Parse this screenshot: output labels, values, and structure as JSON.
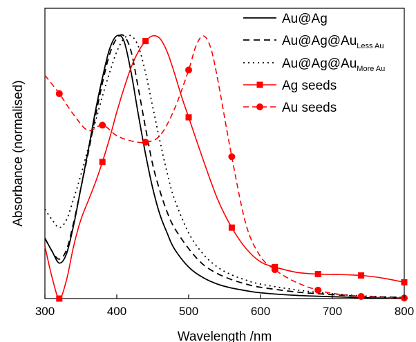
{
  "chart_data": {
    "type": "line",
    "title": "",
    "xlabel": "Wavelength /nm",
    "ylabel": "Absorbance (normalised)",
    "xlim": [
      300,
      800
    ],
    "ylim": [
      0,
      1.0
    ],
    "xticks": [
      300,
      400,
      500,
      600,
      700,
      800
    ],
    "yticks_shown": false,
    "legend_position": "top-right",
    "series": [
      {
        "name": "Au@Ag",
        "color": "#000000",
        "dash": "solid",
        "marker": "none",
        "x": [
          300,
          310,
          320,
          330,
          340,
          350,
          360,
          370,
          380,
          390,
          400,
          410,
          420,
          430,
          440,
          450,
          460,
          470,
          480,
          500,
          520,
          540,
          560,
          580,
          600,
          650,
          700,
          750,
          800
        ],
        "y": [
          0.23,
          0.18,
          0.135,
          0.17,
          0.28,
          0.42,
          0.56,
          0.71,
          0.84,
          0.95,
          1.0,
          0.98,
          0.86,
          0.7,
          0.55,
          0.42,
          0.32,
          0.25,
          0.19,
          0.12,
          0.08,
          0.055,
          0.04,
          0.03,
          0.022,
          0.012,
          0.007,
          0.003,
          0.0
        ]
      },
      {
        "name": "Au@Ag@Au",
        "name_sub": "Less Au",
        "color": "#000000",
        "dash": "long",
        "marker": "none",
        "x": [
          300,
          310,
          320,
          330,
          340,
          350,
          360,
          370,
          380,
          390,
          400,
          410,
          420,
          430,
          440,
          450,
          460,
          470,
          480,
          500,
          520,
          540,
          560,
          580,
          600,
          650,
          700,
          750,
          800
        ],
        "y": [
          0.23,
          0.18,
          0.15,
          0.185,
          0.29,
          0.42,
          0.55,
          0.69,
          0.82,
          0.93,
          0.99,
          1.0,
          0.94,
          0.8,
          0.65,
          0.51,
          0.41,
          0.33,
          0.27,
          0.19,
          0.13,
          0.095,
          0.072,
          0.055,
          0.043,
          0.025,
          0.015,
          0.008,
          0.004
        ]
      },
      {
        "name": "Au@Ag@Au",
        "name_sub": "More Au",
        "color": "#000000",
        "dash": "dotted",
        "marker": "none",
        "x": [
          300,
          310,
          320,
          330,
          340,
          350,
          360,
          370,
          380,
          390,
          400,
          410,
          420,
          430,
          440,
          450,
          460,
          470,
          480,
          500,
          520,
          540,
          560,
          580,
          600,
          650,
          700,
          750,
          800
        ],
        "y": [
          0.34,
          0.3,
          0.27,
          0.3,
          0.38,
          0.47,
          0.57,
          0.67,
          0.77,
          0.86,
          0.94,
          0.99,
          1.0,
          0.96,
          0.86,
          0.73,
          0.6,
          0.48,
          0.38,
          0.25,
          0.17,
          0.12,
          0.09,
          0.07,
          0.055,
          0.033,
          0.018,
          0.009,
          0.004
        ]
      },
      {
        "name": "Ag seeds",
        "color": "#ff0000",
        "dash": "solid",
        "marker": "square",
        "x": [
          300,
          310,
          320,
          330,
          340,
          350,
          360,
          370,
          380,
          390,
          400,
          410,
          420,
          430,
          440,
          450,
          460,
          470,
          480,
          490,
          500,
          520,
          540,
          560,
          580,
          600,
          620,
          650,
          680,
          700,
          740,
          770,
          800
        ],
        "y": [
          0.2,
          0.08,
          0.0,
          0.07,
          0.2,
          0.3,
          0.37,
          0.44,
          0.52,
          0.61,
          0.71,
          0.8,
          0.88,
          0.94,
          0.98,
          1.0,
          0.99,
          0.94,
          0.86,
          0.77,
          0.69,
          0.53,
          0.38,
          0.27,
          0.19,
          0.14,
          0.12,
          0.1,
          0.093,
          0.092,
          0.088,
          0.078,
          0.062
        ]
      },
      {
        "name": "Au seeds",
        "color": "#ff0000",
        "dash": "dashed",
        "marker": "circle",
        "x": [
          300,
          320,
          340,
          360,
          380,
          400,
          420,
          440,
          460,
          480,
          500,
          510,
          520,
          530,
          540,
          560,
          580,
          600,
          620,
          640,
          660,
          680,
          700,
          740,
          800
        ],
        "y": [
          0.85,
          0.78,
          0.7,
          0.64,
          0.66,
          0.62,
          0.6,
          0.595,
          0.62,
          0.72,
          0.87,
          0.96,
          1.0,
          0.96,
          0.84,
          0.54,
          0.28,
          0.16,
          0.11,
          0.075,
          0.05,
          0.032,
          0.02,
          0.008,
          0.002
        ]
      }
    ],
    "markers": {
      "Ag seeds": {
        "x": [
          320,
          380,
          440,
          500,
          560,
          620,
          680,
          740,
          800
        ],
        "y": [
          0.0,
          0.52,
          0.98,
          0.69,
          0.27,
          0.12,
          0.093,
          0.088,
          0.062
        ]
      },
      "Au seeds": {
        "x": [
          320,
          380,
          440,
          500,
          560,
          620,
          680,
          740,
          800
        ],
        "y": [
          0.78,
          0.66,
          0.595,
          0.87,
          0.54,
          0.11,
          0.032,
          0.008,
          0.002
        ]
      }
    }
  }
}
